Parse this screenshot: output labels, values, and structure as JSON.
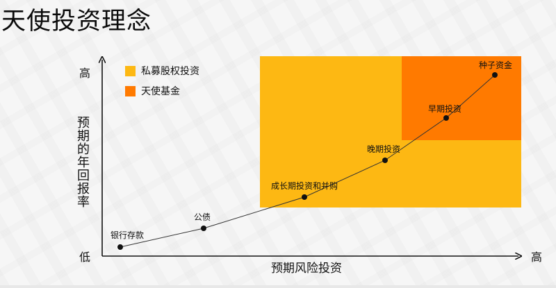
{
  "title": "天使投资理念",
  "legend": [
    {
      "label": "私募股权投资",
      "color": "#FDB813"
    },
    {
      "label": "天使基金",
      "color": "#FF7A00"
    }
  ],
  "axes": {
    "y_label": "预期的年回报率",
    "y_high": "高",
    "y_low": "低",
    "x_label": "预期风险投资",
    "x_high": "高"
  },
  "points": [
    {
      "label": "银行存款"
    },
    {
      "label": "公债"
    },
    {
      "label": "成长期投资和并购"
    },
    {
      "label": "晚期投资"
    },
    {
      "label": "早期投资"
    },
    {
      "label": "种子资金"
    }
  ]
}
